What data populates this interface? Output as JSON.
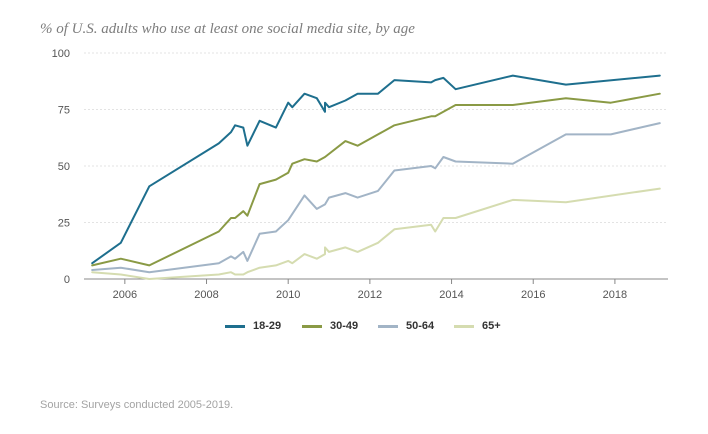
{
  "title": "% of U.S. adults who use at least one social media site, by age",
  "source": "Source: Surveys conducted 2005-2019.",
  "chart_data": {
    "type": "line",
    "xlim": [
      2005,
      2019.3
    ],
    "ylim": [
      0,
      100
    ],
    "xticks": [
      2006,
      2008,
      2010,
      2012,
      2014,
      2016,
      2018
    ],
    "xtick_labels": [
      "2006",
      "2008",
      "2010",
      "2012",
      "2014",
      "2016",
      "2018"
    ],
    "yticks": [
      0,
      25,
      50,
      75,
      100
    ],
    "ytick_labels": [
      "0",
      "25",
      "50",
      "75",
      "100"
    ],
    "grid": true,
    "legend_position": "bottom",
    "series": [
      {
        "name": "18-29",
        "color": "#1e6f8e",
        "points": [
          [
            2005.2,
            7
          ],
          [
            2005.9,
            16
          ],
          [
            2006.6,
            41
          ],
          [
            2008.3,
            60
          ],
          [
            2008.6,
            65
          ],
          [
            2008.7,
            68
          ],
          [
            2008.9,
            67
          ],
          [
            2009.0,
            59
          ],
          [
            2009.3,
            70
          ],
          [
            2009.7,
            67
          ],
          [
            2010.0,
            78
          ],
          [
            2010.1,
            76
          ],
          [
            2010.4,
            82
          ],
          [
            2010.7,
            80
          ],
          [
            2010.9,
            74
          ],
          [
            2010.9,
            78
          ],
          [
            2011.0,
            76
          ],
          [
            2011.4,
            79
          ],
          [
            2011.7,
            82
          ],
          [
            2012.2,
            82
          ],
          [
            2012.6,
            88
          ],
          [
            2013.5,
            87
          ],
          [
            2013.6,
            88
          ],
          [
            2013.8,
            89
          ],
          [
            2014.1,
            84
          ],
          [
            2015.5,
            90
          ],
          [
            2016.8,
            86
          ],
          [
            2019.1,
            90
          ]
        ]
      },
      {
        "name": "30-49",
        "color": "#8a9a45",
        "points": [
          [
            2005.2,
            6
          ],
          [
            2005.9,
            9
          ],
          [
            2006.6,
            6
          ],
          [
            2008.3,
            21
          ],
          [
            2008.6,
            27
          ],
          [
            2008.7,
            27
          ],
          [
            2008.9,
            30
          ],
          [
            2009.0,
            28
          ],
          [
            2009.3,
            42
          ],
          [
            2009.7,
            44
          ],
          [
            2010.0,
            47
          ],
          [
            2010.1,
            51
          ],
          [
            2010.4,
            53
          ],
          [
            2010.7,
            52
          ],
          [
            2010.9,
            54
          ],
          [
            2011.4,
            61
          ],
          [
            2011.7,
            59
          ],
          [
            2012.2,
            64
          ],
          [
            2012.6,
            68
          ],
          [
            2013.5,
            72
          ],
          [
            2013.6,
            72
          ],
          [
            2014.1,
            77
          ],
          [
            2015.5,
            77
          ],
          [
            2016.8,
            80
          ],
          [
            2017.9,
            78
          ],
          [
            2019.1,
            82
          ]
        ]
      },
      {
        "name": "50-64",
        "color": "#a2b4c6",
        "points": [
          [
            2005.2,
            4
          ],
          [
            2005.9,
            5
          ],
          [
            2006.6,
            3
          ],
          [
            2008.3,
            7
          ],
          [
            2008.6,
            10
          ],
          [
            2008.7,
            9
          ],
          [
            2008.9,
            12
          ],
          [
            2009.0,
            8
          ],
          [
            2009.3,
            20
          ],
          [
            2009.7,
            21
          ],
          [
            2010.0,
            26
          ],
          [
            2010.4,
            37
          ],
          [
            2010.7,
            31
          ],
          [
            2010.9,
            33
          ],
          [
            2011.0,
            36
          ],
          [
            2011.4,
            38
          ],
          [
            2011.7,
            36
          ],
          [
            2012.2,
            39
          ],
          [
            2012.6,
            48
          ],
          [
            2013.5,
            50
          ],
          [
            2013.6,
            49
          ],
          [
            2013.8,
            54
          ],
          [
            2014.1,
            52
          ],
          [
            2015.5,
            51
          ],
          [
            2016.8,
            64
          ],
          [
            2017.9,
            64
          ],
          [
            2019.1,
            69
          ]
        ]
      },
      {
        "name": "65+",
        "color": "#d5dcb0",
        "points": [
          [
            2005.2,
            3
          ],
          [
            2005.9,
            2
          ],
          [
            2006.6,
            0
          ],
          [
            2008.3,
            2
          ],
          [
            2008.6,
            3
          ],
          [
            2008.7,
            2
          ],
          [
            2008.9,
            2
          ],
          [
            2009.0,
            3
          ],
          [
            2009.3,
            5
          ],
          [
            2009.7,
            6
          ],
          [
            2010.0,
            8
          ],
          [
            2010.1,
            7
          ],
          [
            2010.4,
            11
          ],
          [
            2010.7,
            9
          ],
          [
            2010.9,
            11
          ],
          [
            2010.9,
            14
          ],
          [
            2011.0,
            12
          ],
          [
            2011.4,
            14
          ],
          [
            2011.7,
            12
          ],
          [
            2012.2,
            16
          ],
          [
            2012.6,
            22
          ],
          [
            2013.5,
            24
          ],
          [
            2013.6,
            21
          ],
          [
            2013.8,
            27
          ],
          [
            2014.1,
            27
          ],
          [
            2015.5,
            35
          ],
          [
            2016.8,
            34
          ],
          [
            2019.1,
            40
          ]
        ]
      }
    ]
  }
}
